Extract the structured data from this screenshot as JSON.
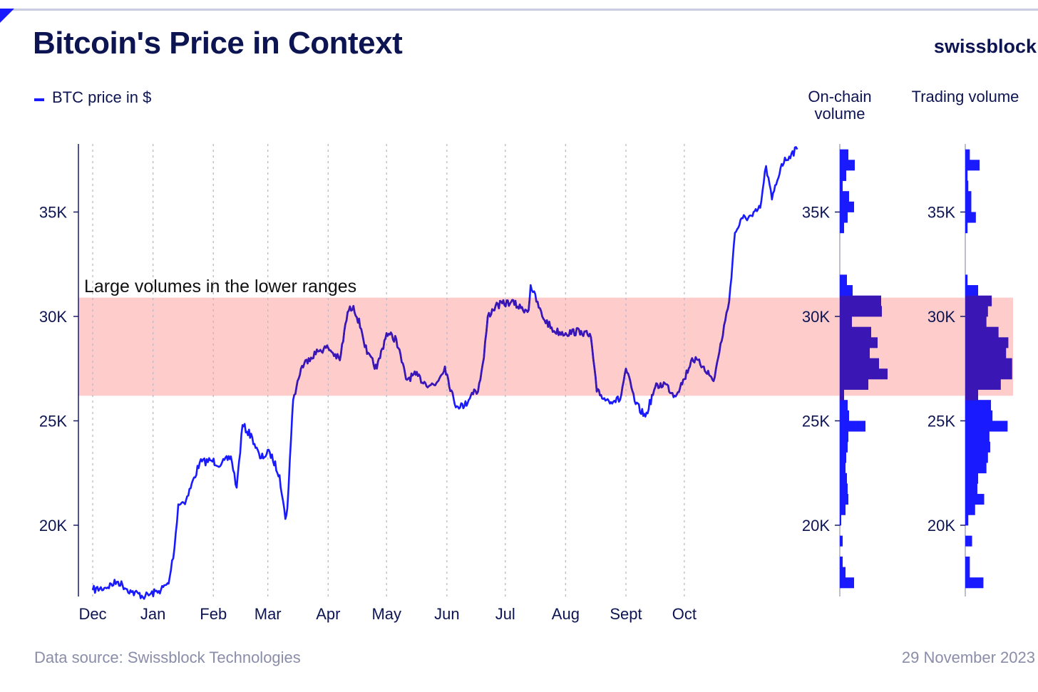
{
  "header": {
    "title": "Bitcoin's Price in Context",
    "brand": "swissblock"
  },
  "legend": {
    "label": "BTC price in $"
  },
  "footer": {
    "source": "Data source: Swissblock Technologies",
    "date": "29 November 2023"
  },
  "colors": {
    "line": "#1a1aff",
    "band": "#ffcccc",
    "overlap": "#3a17b4",
    "text": "#0d1452"
  },
  "chart_data": [
    {
      "type": "line",
      "title": "Bitcoin's Price in Context",
      "legend": "top-left",
      "grid": "vertical dotted lines at month boundaries",
      "ylim": [
        16500,
        38300
      ],
      "y_ticks": [
        20000,
        25000,
        30000,
        35000
      ],
      "y_tick_labels": [
        "20K",
        "25K",
        "30K",
        "35K"
      ],
      "months": [
        "Dec",
        "Jan",
        "Feb",
        "Mar",
        "Apr",
        "May",
        "Jun",
        "Jul",
        "Aug",
        "Sept",
        "Oct"
      ],
      "series": [
        {
          "name": "BTC price in $",
          "x": [
            "2022-12-01",
            "2022-12-07",
            "2022-12-14",
            "2022-12-21",
            "2022-12-28",
            "2023-01-04",
            "2023-01-09",
            "2023-01-12",
            "2023-01-14",
            "2023-01-18",
            "2023-01-25",
            "2023-01-31",
            "2023-02-05",
            "2023-02-10",
            "2023-02-13",
            "2023-02-16",
            "2023-02-21",
            "2023-02-25",
            "2023-03-02",
            "2023-03-07",
            "2023-03-10",
            "2023-03-11",
            "2023-03-13",
            "2023-03-14",
            "2023-03-18",
            "2023-03-22",
            "2023-03-28",
            "2023-04-01",
            "2023-04-07",
            "2023-04-11",
            "2023-04-14",
            "2023-04-18",
            "2023-04-21",
            "2023-04-26",
            "2023-05-01",
            "2023-05-06",
            "2023-05-11",
            "2023-05-16",
            "2023-05-21",
            "2023-05-26",
            "2023-05-31",
            "2023-06-05",
            "2023-06-10",
            "2023-06-15",
            "2023-06-17",
            "2023-06-20",
            "2023-06-22",
            "2023-06-26",
            "2023-07-04",
            "2023-07-09",
            "2023-07-13",
            "2023-07-14",
            "2023-07-20",
            "2023-07-26",
            "2023-08-01",
            "2023-08-09",
            "2023-08-14",
            "2023-08-17",
            "2023-08-22",
            "2023-08-29",
            "2023-09-01",
            "2023-09-06",
            "2023-09-11",
            "2023-09-16",
            "2023-09-21",
            "2023-09-26",
            "2023-10-01",
            "2023-10-05",
            "2023-10-11",
            "2023-10-16",
            "2023-10-19",
            "2023-10-22",
            "2023-10-24",
            "2023-10-27",
            "2023-10-31",
            "2023-11-05",
            "2023-11-09",
            "2023-11-12",
            "2023-11-15",
            "2023-11-20",
            "2023-11-25",
            "2023-11-28"
          ],
          "values": [
            16900,
            17000,
            17300,
            16800,
            16600,
            16850,
            17200,
            18900,
            21000,
            21200,
            23000,
            23100,
            22900,
            23300,
            21800,
            24800,
            24200,
            23200,
            23500,
            22400,
            20300,
            20800,
            24300,
            26000,
            27500,
            28000,
            28400,
            28500,
            27900,
            30200,
            30500,
            29400,
            28200,
            27500,
            29200,
            28900,
            27000,
            27200,
            26800,
            26700,
            27600,
            25800,
            25700,
            26500,
            26400,
            28000,
            30000,
            30500,
            30700,
            30400,
            30300,
            31500,
            30000,
            29300,
            29200,
            29300,
            29000,
            26400,
            26000,
            26000,
            27500,
            25800,
            25200,
            26600,
            26800,
            26200,
            27000,
            28000,
            27600,
            26900,
            28300,
            29800,
            30700,
            34000,
            34700,
            34800,
            35200,
            37200,
            35600,
            37300,
            37800,
            38000
          ]
        }
      ],
      "annotations": [
        "Large volumes in the lower ranges"
      ],
      "highlight_band": [
        26200,
        30900
      ]
    },
    {
      "type": "bar",
      "title": "On-chain volume",
      "orientation": "horizontal",
      "price_bin_width": 500,
      "bins": [
        17250,
        17750,
        18250,
        18750,
        19250,
        19750,
        20250,
        20750,
        21250,
        21750,
        22250,
        22750,
        23250,
        23750,
        24250,
        24750,
        25250,
        25750,
        26250,
        26750,
        27250,
        27750,
        28250,
        28750,
        29250,
        29750,
        30250,
        30750,
        31250,
        31750,
        32250,
        32750,
        33250,
        33750,
        34250,
        34750,
        35250,
        35750,
        36250,
        36750,
        37250,
        37750
      ],
      "values": [
        20,
        8,
        4,
        0,
        4,
        0,
        2,
        8,
        12,
        11,
        10,
        8,
        9,
        11,
        12,
        36,
        13,
        11,
        6,
        40,
        67,
        55,
        42,
        53,
        44,
        17,
        59,
        58,
        18,
        10,
        0,
        0,
        0,
        0,
        6,
        11,
        20,
        13,
        4,
        9,
        21,
        12
      ]
    },
    {
      "type": "bar",
      "title": "Trading volume",
      "orientation": "horizontal",
      "price_bin_width": 500,
      "bins": [
        17250,
        17750,
        18250,
        18750,
        19250,
        19750,
        20250,
        20750,
        21250,
        21750,
        22250,
        22750,
        23250,
        23750,
        24250,
        24750,
        25250,
        25750,
        26250,
        26750,
        27250,
        27750,
        28250,
        28750,
        29250,
        29750,
        30250,
        30750,
        31250,
        31750,
        32250,
        32750,
        33250,
        33750,
        34250,
        34750,
        35250,
        35750,
        36250,
        36750,
        37250,
        37750
      ],
      "values": [
        24,
        6,
        6,
        0,
        9,
        0,
        4,
        13,
        25,
        16,
        17,
        28,
        30,
        33,
        32,
        56,
        36,
        34,
        17,
        47,
        62,
        62,
        54,
        57,
        44,
        28,
        30,
        35,
        17,
        3,
        0,
        0,
        0,
        0,
        3,
        14,
        8,
        8,
        4,
        3,
        19,
        6
      ]
    }
  ]
}
